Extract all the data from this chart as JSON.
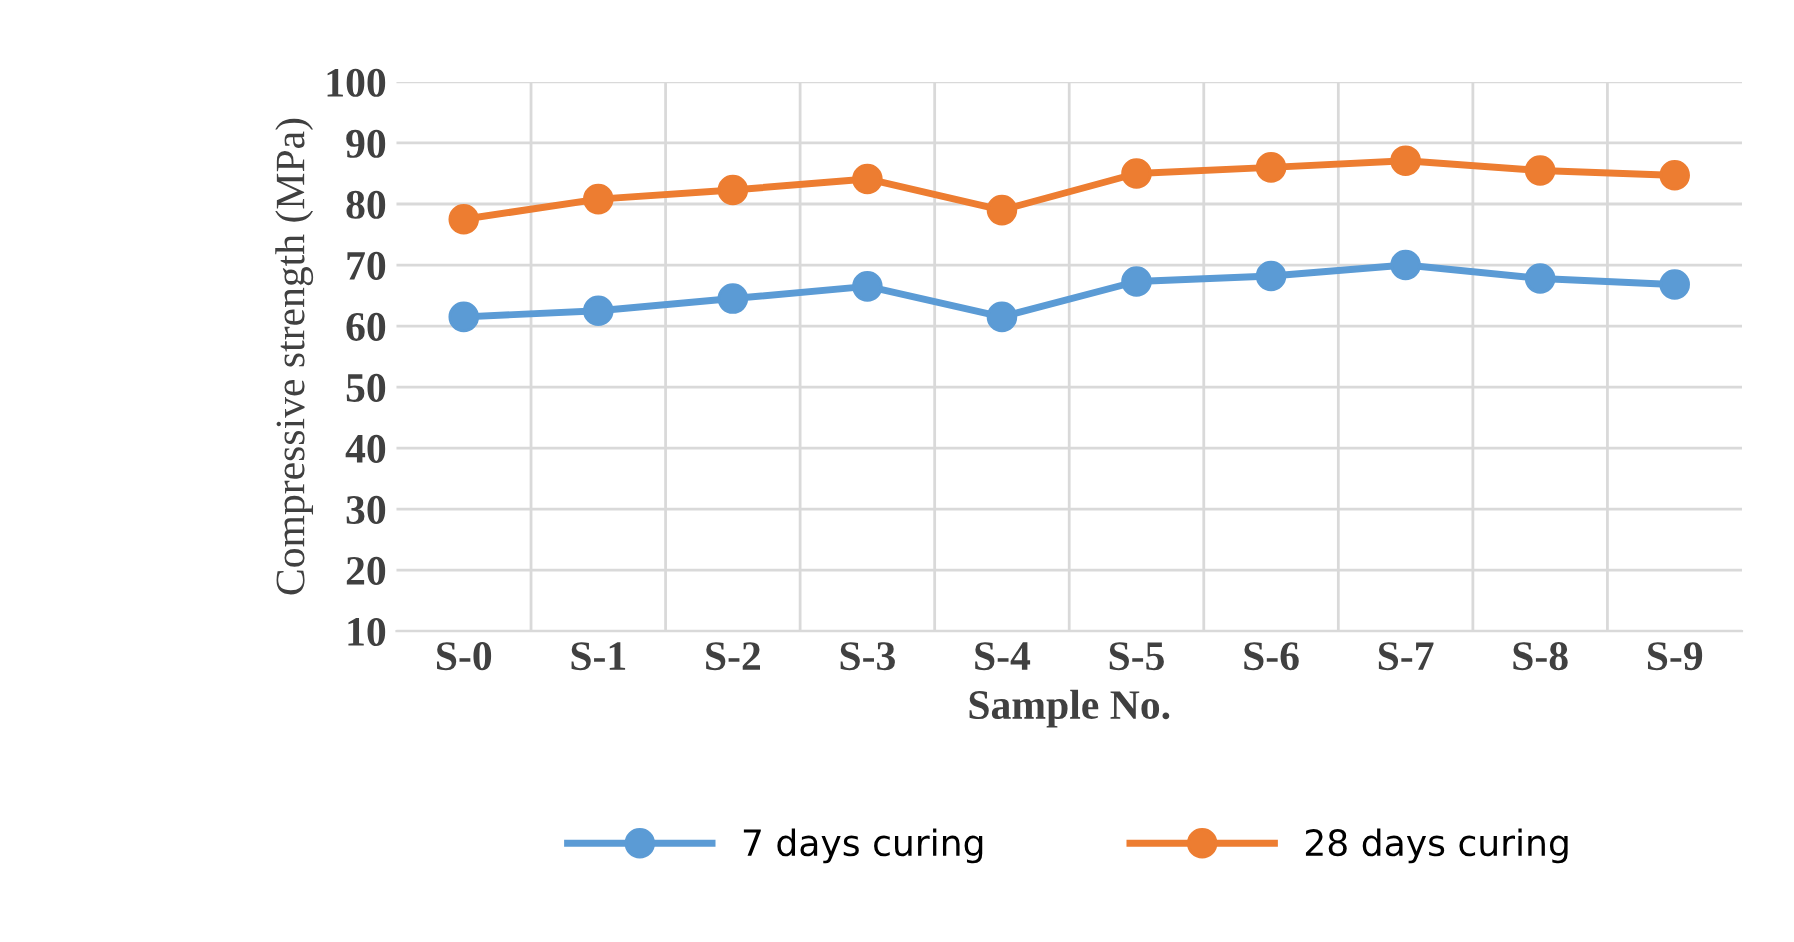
{
  "chart_data": {
    "type": "line",
    "xlabel": "Sample No.",
    "ylabel": "Compressive strength (MPa)",
    "categories": [
      "S-0",
      "S-1",
      "S-2",
      "S-3",
      "S-4",
      "S-5",
      "S-6",
      "S-7",
      "S-8",
      "S-9"
    ],
    "series": [
      {
        "name": "7 days curing",
        "color": "#5b9bd5",
        "values": [
          61.5,
          62.5,
          64.5,
          66.5,
          61.5,
          67.3,
          68.2,
          70,
          67.8,
          66.8
        ]
      },
      {
        "name": "28 days curing",
        "color": "#ed7d31",
        "values": [
          77.5,
          80.8,
          82.3,
          84.1,
          79,
          85,
          86,
          87.1,
          85.5,
          84.7
        ]
      }
    ],
    "ylim": [
      10,
      100
    ],
    "yticks": [
      10,
      20,
      30,
      40,
      50,
      60,
      70,
      80,
      90,
      100
    ],
    "grid": true,
    "legend": "bottom",
    "marker": "circle",
    "line_style": "solid"
  }
}
